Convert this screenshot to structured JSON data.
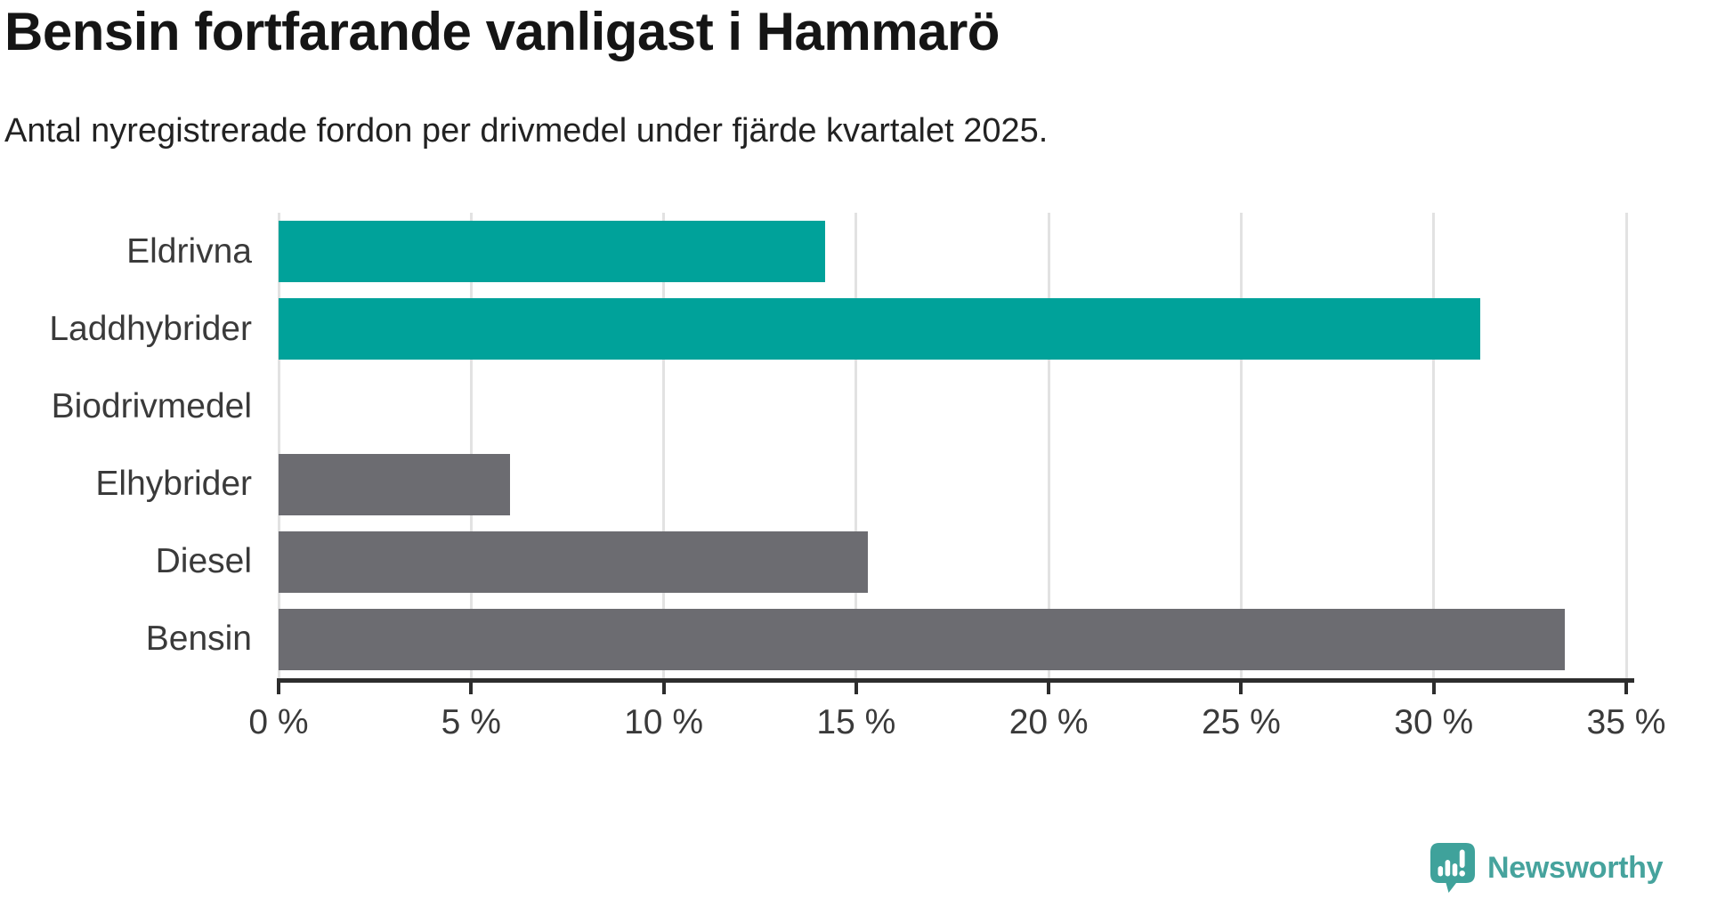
{
  "header": {
    "title": "Bensin fortfarande vanligast i Hammarö",
    "subtitle": "Antal nyregistrerade fordon per drivmedel under fjärde kvartalet 2025."
  },
  "chart_data": {
    "type": "bar",
    "orientation": "horizontal",
    "title": "Bensin fortfarande vanligast i Hammarö",
    "subtitle": "Antal nyregistrerade fordon per drivmedel under fjärde kvartalet 2025.",
    "categories": [
      "Eldrivna",
      "Laddhybrider",
      "Biodrivmedel",
      "Elhybrider",
      "Diesel",
      "Bensin"
    ],
    "values": [
      14.2,
      31.2,
      0,
      6.0,
      15.3,
      33.4
    ],
    "unit": "%",
    "xlim": [
      0,
      35
    ],
    "x_ticks": [
      0,
      5,
      10,
      15,
      20,
      25,
      30,
      35
    ],
    "x_tick_labels": [
      "0 %",
      "5 %",
      "10 %",
      "15 %",
      "20 %",
      "25 %",
      "30 %",
      "35 %"
    ],
    "bar_colors": [
      "#00a29a",
      "#00a29a",
      "#6c6c71",
      "#6c6c71",
      "#6c6c71",
      "#6c6c71"
    ],
    "grid": true,
    "legend": "none",
    "colors": {
      "highlight": "#00a29a",
      "default": "#6c6c71",
      "gridline": "#e2e2e2",
      "axis": "#2d2d2d",
      "label": "#3a3a3a"
    }
  },
  "footer": {
    "brand": "Newsworthy",
    "brand_color": "#46a39d",
    "logo_icon": "newsworthy-speech-bubble-bar-chart-icon"
  }
}
